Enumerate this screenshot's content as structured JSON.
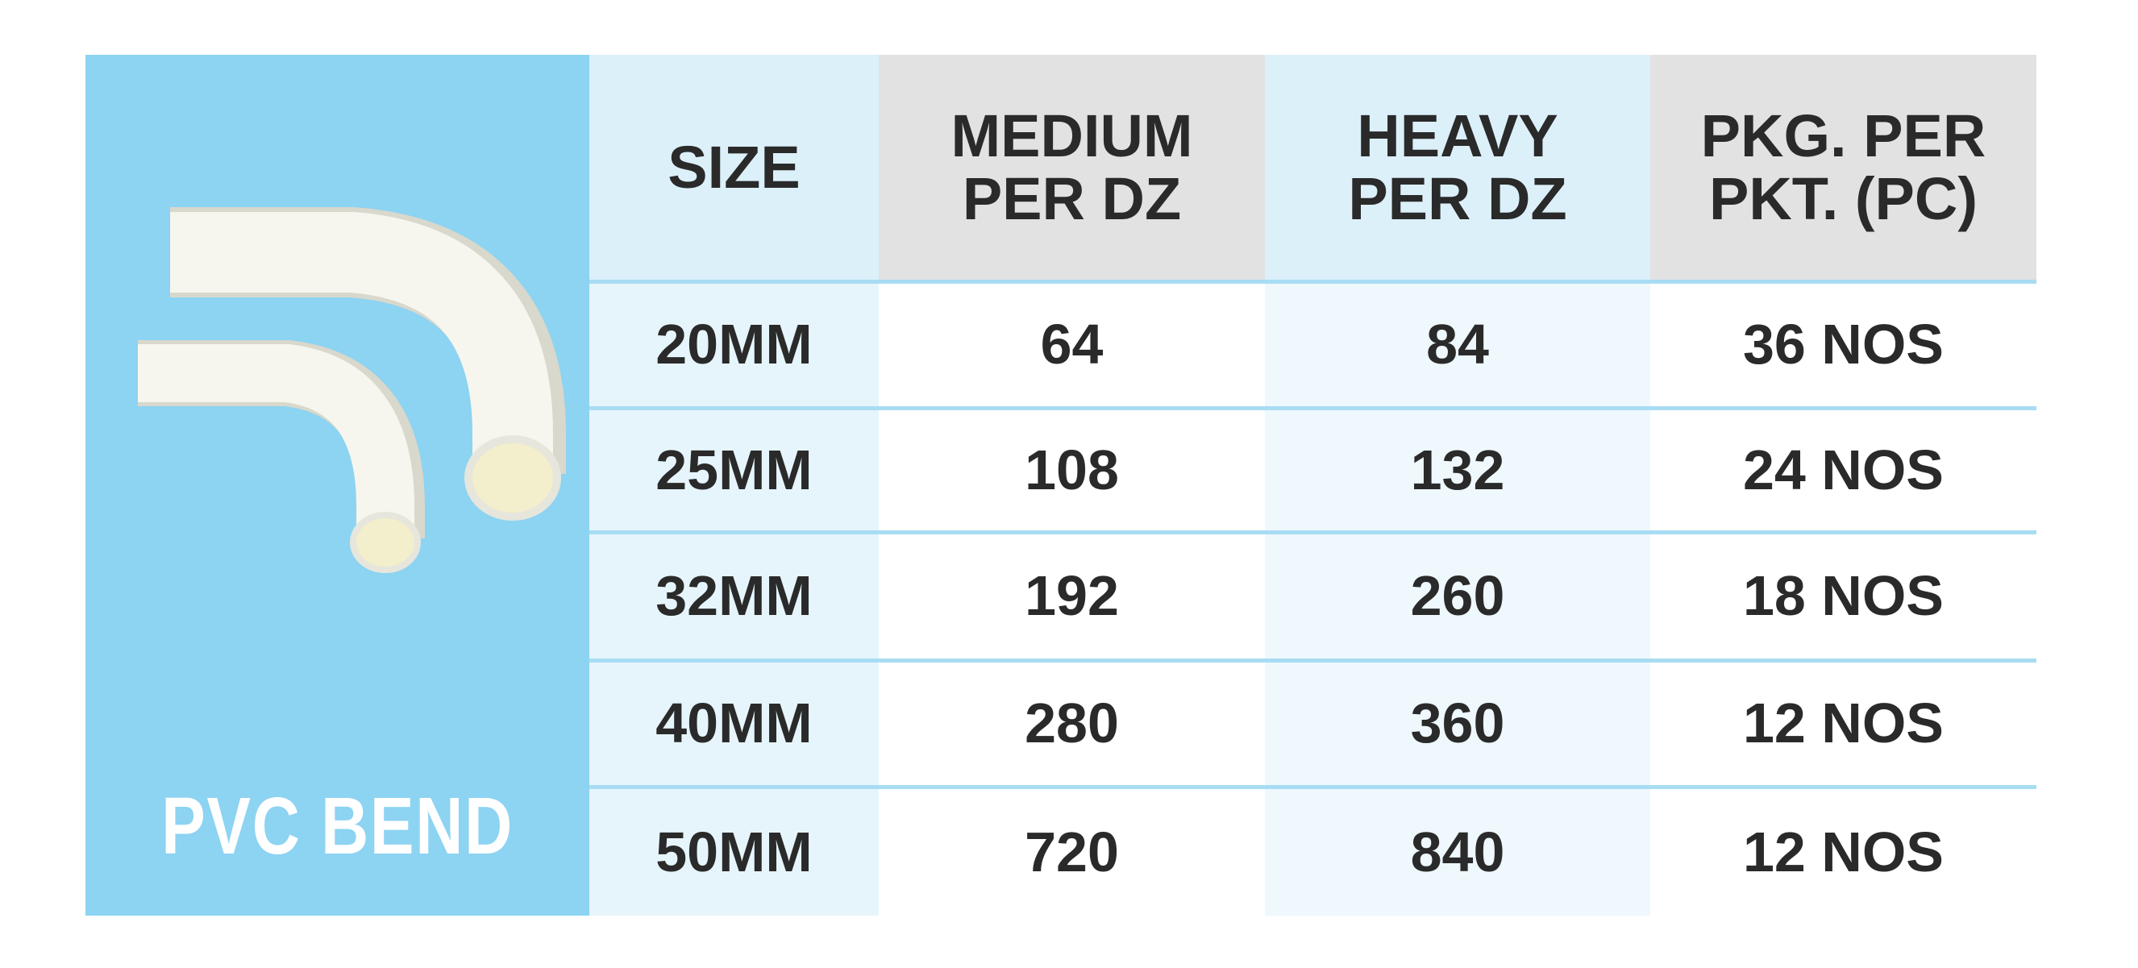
{
  "product": {
    "label": "PVC BEND"
  },
  "table": {
    "headers": [
      [
        "SIZE"
      ],
      [
        "MEDIUM",
        "PER DZ"
      ],
      [
        "HEAVY",
        "PER DZ"
      ],
      [
        "PKG. PER",
        "PKT. (PC)"
      ]
    ],
    "rows": [
      [
        "20MM",
        "64",
        "84",
        "36 NOS"
      ],
      [
        "25MM",
        "108",
        "132",
        "24 NOS"
      ],
      [
        "32MM",
        "192",
        "260",
        "18 NOS"
      ],
      [
        "40MM",
        "280",
        "360",
        "12 NOS"
      ],
      [
        "50MM",
        "720",
        "840",
        "12 NOS"
      ]
    ]
  }
}
